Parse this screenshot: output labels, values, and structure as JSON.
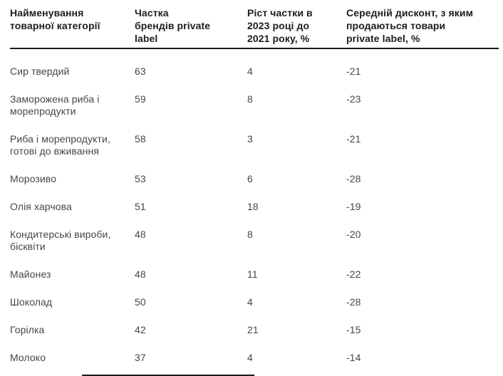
{
  "table": {
    "columns": [
      {
        "label": "Найменування товарної категорії",
        "lines": [
          "Найменування",
          "товарної категорії"
        ]
      },
      {
        "label": "Частка брендів private label",
        "lines": [
          "Частка",
          "брендів private",
          "label"
        ]
      },
      {
        "label": "Ріст частки в 2023 році до 2021 року, %",
        "lines": [
          "Ріст частки в",
          "2023 році до",
          "2021 року, %"
        ]
      },
      {
        "label": "Середній дисконт, з яким продаються товари private label, %",
        "lines": [
          "Середній дисконт, з яким",
          "продаються товари",
          "private label, %"
        ]
      }
    ],
    "rows": [
      {
        "category": "Сир твердий",
        "share": "63",
        "growth": "4",
        "discount": "-21"
      },
      {
        "category": "Заморожена риба і морепродукти",
        "share": "59",
        "growth": "8",
        "discount": "-23"
      },
      {
        "category": "Риба і морепродукти, готові до вживання",
        "share": "58",
        "growth": "3",
        "discount": "-21"
      },
      {
        "category": "Морозиво",
        "share": "53",
        "growth": "6",
        "discount": "-28"
      },
      {
        "category": "Олія харчова",
        "share": "51",
        "growth": "18",
        "discount": "-19"
      },
      {
        "category": "Кондитерські вироби, бісквіти",
        "share": "48",
        "growth": "8",
        "discount": "-20"
      },
      {
        "category": "Майонез",
        "share": "48",
        "growth": "11",
        "discount": "-22"
      },
      {
        "category": "Шоколад",
        "share": "50",
        "growth": "4",
        "discount": "-28"
      },
      {
        "category": "Горілка",
        "share": "42",
        "growth": "21",
        "discount": "-15"
      },
      {
        "category": "Молоко",
        "share": "37",
        "growth": "4",
        "discount": "-14"
      }
    ],
    "colors": {
      "background": "#ffffff",
      "header_text": "#1b1d1f",
      "body_text": "#43474b",
      "divider": "#1a1a1a"
    }
  },
  "chart_data": {
    "type": "table",
    "columns": [
      "Найменування товарної категорії",
      "Частка брендів private label",
      "Ріст частки в 2023 році до 2021 року, %",
      "Середній дисконт, з яким продаються товари private label, %"
    ],
    "rows": [
      [
        "Сир твердий",
        63,
        4,
        -21
      ],
      [
        "Заморожена риба і морепродукти",
        59,
        8,
        -23
      ],
      [
        "Риба і морепродукти, готові до вживання",
        58,
        3,
        -21
      ],
      [
        "Морозиво",
        53,
        6,
        -28
      ],
      [
        "Олія харчова",
        51,
        18,
        -19
      ],
      [
        "Кондитерські вироби, бісквіти",
        48,
        8,
        -20
      ],
      [
        "Майонез",
        48,
        11,
        -22
      ],
      [
        "Шоколад",
        50,
        4,
        -28
      ],
      [
        "Горілка",
        42,
        21,
        -15
      ],
      [
        "Молоко",
        37,
        4,
        -14
      ]
    ]
  }
}
